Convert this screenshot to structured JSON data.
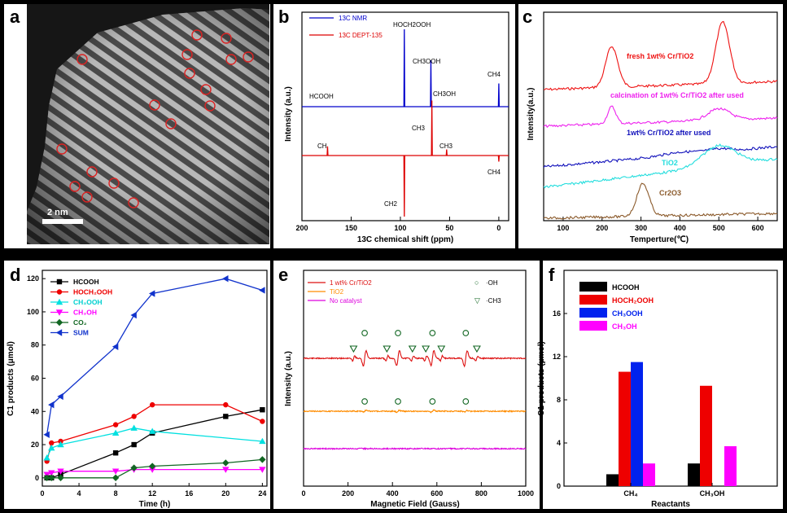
{
  "panels": {
    "a": {
      "letter": "a",
      "scalebar": "2 nm",
      "circles": 17
    },
    "b": {
      "letter": "b",
      "ylabel": "Intensity (a.u.)",
      "xlabel": "13C chemical shift (ppm)",
      "xticks": [
        "200",
        "150",
        "100",
        "50",
        "0"
      ],
      "legend": [
        {
          "name": "13C NMR",
          "color": "#0000cc"
        },
        {
          "name": "13C DEPT-135",
          "color": "#dd0000"
        }
      ],
      "labels": {
        "hochooh": "HOCH2OOH",
        "ch3ooh": "CH3OOH",
        "ch3oh": "CH3OH",
        "hcooh": "HCOOH",
        "ch4": "CH4",
        "ch3_a": "CH3",
        "ch": "CH",
        "ch3_b": "CH3",
        "ch4_b": "CH4",
        "ch2": "CH2"
      }
    },
    "c": {
      "letter": "c",
      "ylabel": "Intensity(a.u.)",
      "xlabel": "Temperture(℃)",
      "xticks": [
        "100",
        "200",
        "300",
        "400",
        "500",
        "600"
      ],
      "series": [
        {
          "name": "fresh 1wt% Cr/TiO2",
          "color": "#ee1111"
        },
        {
          "name": "calcination of 1wt% Cr/TiO2 after used",
          "color": "#ee22ee"
        },
        {
          "name": "1wt% Cr/TiO2 after used",
          "color": "#1111bb"
        },
        {
          "name": "TiO2",
          "color": "#22dddd"
        },
        {
          "name": "Cr2O3",
          "color": "#8b5a2b"
        }
      ]
    },
    "d": {
      "letter": "d",
      "ylabel": "C1 products (μmol)",
      "xlabel": "Time (h)",
      "yticks": [
        "0",
        "20",
        "40",
        "60",
        "80",
        "100",
        "120"
      ],
      "xticks": [
        "0",
        "4",
        "8",
        "12",
        "16",
        "20",
        "24"
      ]
    },
    "e": {
      "letter": "e",
      "ylabel": "Intensity (a.u.)",
      "xlabel": "Magnetic Field (Gauss)",
      "xticks": [
        "0",
        "200",
        "400",
        "600",
        "800",
        "1000"
      ],
      "legend": [
        {
          "name": "1 wt% Cr/TiO2",
          "color": "#dd1111"
        },
        {
          "name": "TiO2",
          "color": "#ff8c00"
        },
        {
          "name": "No catalyst",
          "color": "#dd00dd"
        }
      ],
      "marker_legend": [
        {
          "symbol": "○",
          "name": "·OH"
        },
        {
          "symbol": "▽",
          "name": "·CH3"
        }
      ]
    },
    "f": {
      "letter": "f",
      "ylabel": "C1 products (μmol)",
      "xlabel": "Reactants",
      "yticks": [
        "0",
        "4",
        "8",
        "12",
        "16"
      ]
    }
  },
  "chart_data": [
    {
      "panel": "b",
      "type": "line",
      "title": "",
      "xlabel": "13C chemical shift (ppm)",
      "ylabel": "Intensity (a.u.)",
      "xlim": [
        200,
        -10
      ],
      "series": [
        {
          "name": "13C NMR",
          "color": "#0000cc",
          "peaks": [
            {
              "x": 96,
              "label": "HOCH2OOH",
              "h": 1.0
            },
            {
              "x": 69,
              "label": "CH3OOH",
              "h": 0.6
            },
            {
              "x": 0,
              "label": "CH4",
              "h": 0.3
            }
          ]
        },
        {
          "name": "13C DEPT-135",
          "color": "#dd0000",
          "peaks": [
            {
              "x": 68,
              "label": "CH3",
              "h": 0.9
            },
            {
              "x": 174,
              "label": "CH",
              "h": 0.15
            },
            {
              "x": 53,
              "label": "CH3",
              "h": 0.1
            },
            {
              "x": 96,
              "label": "CH2",
              "h": -1.0
            },
            {
              "x": 0,
              "label": "CH4",
              "h": -0.1
            }
          ]
        }
      ]
    },
    {
      "panel": "c",
      "type": "line",
      "title": "",
      "xlabel": "Temperture(℃)",
      "ylabel": "Intensity(a.u.)",
      "xlim": [
        50,
        650
      ],
      "series": [
        {
          "name": "fresh 1wt% Cr/TiO2",
          "peaks": [
            [
              225,
              1.0
            ],
            [
              510,
              1.5
            ]
          ]
        },
        {
          "name": "calcination of 1wt% Cr/TiO2 after used",
          "peaks": [
            [
              225,
              0.6
            ],
            [
              500,
              0.4
            ]
          ]
        },
        {
          "name": "1wt% Cr/TiO2 after used",
          "peaks": [
            [
              400,
              0.2
            ],
            [
              500,
              0.2
            ]
          ]
        },
        {
          "name": "TiO2",
          "peaks": [
            [
              500,
              0.9
            ]
          ]
        },
        {
          "name": "Cr2O3",
          "peaks": [
            [
              305,
              1.0
            ]
          ]
        }
      ]
    },
    {
      "panel": "d",
      "type": "line",
      "title": "",
      "xlabel": "Time (h)",
      "ylabel": "C1 products (μmol)",
      "xlim": [
        0,
        24.5
      ],
      "ylim": [
        -5,
        125
      ],
      "x": [
        0.5,
        1,
        2,
        8,
        10,
        12,
        20,
        24
      ],
      "series": [
        {
          "name": "HCOOH",
          "color": "#000000",
          "marker": "square",
          "values": [
            0,
            0,
            2,
            15,
            20,
            27,
            37,
            41
          ]
        },
        {
          "name": "HOCH2OOH",
          "color": "#ee0000",
          "marker": "circle",
          "values": [
            10,
            21,
            22,
            32,
            37,
            44,
            44,
            34
          ]
        },
        {
          "name": "CH3OOH",
          "color": "#00e0e0",
          "marker": "triangle-up",
          "values": [
            12,
            18,
            20,
            27,
            30,
            28,
            null,
            22
          ]
        },
        {
          "name": "CH3OH",
          "color": "#ff00ff",
          "marker": "triangle-down",
          "values": [
            2,
            3,
            4,
            4,
            5,
            5,
            5,
            5
          ]
        },
        {
          "name": "CO2",
          "color": "#116622",
          "marker": "diamond",
          "values": [
            0,
            0,
            0,
            0,
            6,
            7,
            9,
            11
          ]
        },
        {
          "name": "SUM",
          "color": "#1133cc",
          "marker": "triangle-left",
          "values": [
            26,
            44,
            49,
            79,
            98,
            111,
            120,
            113
          ]
        }
      ]
    },
    {
      "panel": "e",
      "type": "line",
      "title": "",
      "xlabel": "Magnetic Field (Gauss)",
      "ylabel": "Intensity (a.u.)",
      "xlim": [
        0,
        1000
      ],
      "oh_markers": [
        275,
        425,
        580,
        730
      ],
      "ch3_markers": [
        225,
        375,
        490,
        550,
        620,
        780
      ],
      "series": [
        {
          "name": "1 wt% Cr/TiO2"
        },
        {
          "name": "TiO2"
        },
        {
          "name": "No catalyst"
        }
      ]
    },
    {
      "panel": "f",
      "type": "bar",
      "title": "",
      "xlabel": "Reactants",
      "ylabel": "C1 products (μmol)",
      "ylim": [
        0,
        20
      ],
      "categories": [
        "CH4",
        "CH3OH"
      ],
      "series": [
        {
          "name": "HCOOH",
          "color": "#000000",
          "values": [
            1.1,
            2.1
          ]
        },
        {
          "name": "HOCH2OOH",
          "color": "#ee0000",
          "values": [
            10.6,
            9.3
          ]
        },
        {
          "name": "CH3OOH",
          "color": "#0022ee",
          "values": [
            11.5,
            0
          ]
        },
        {
          "name": "CH3OH",
          "color": "#ff00ff",
          "values": [
            2.1,
            3.7
          ]
        }
      ]
    }
  ]
}
